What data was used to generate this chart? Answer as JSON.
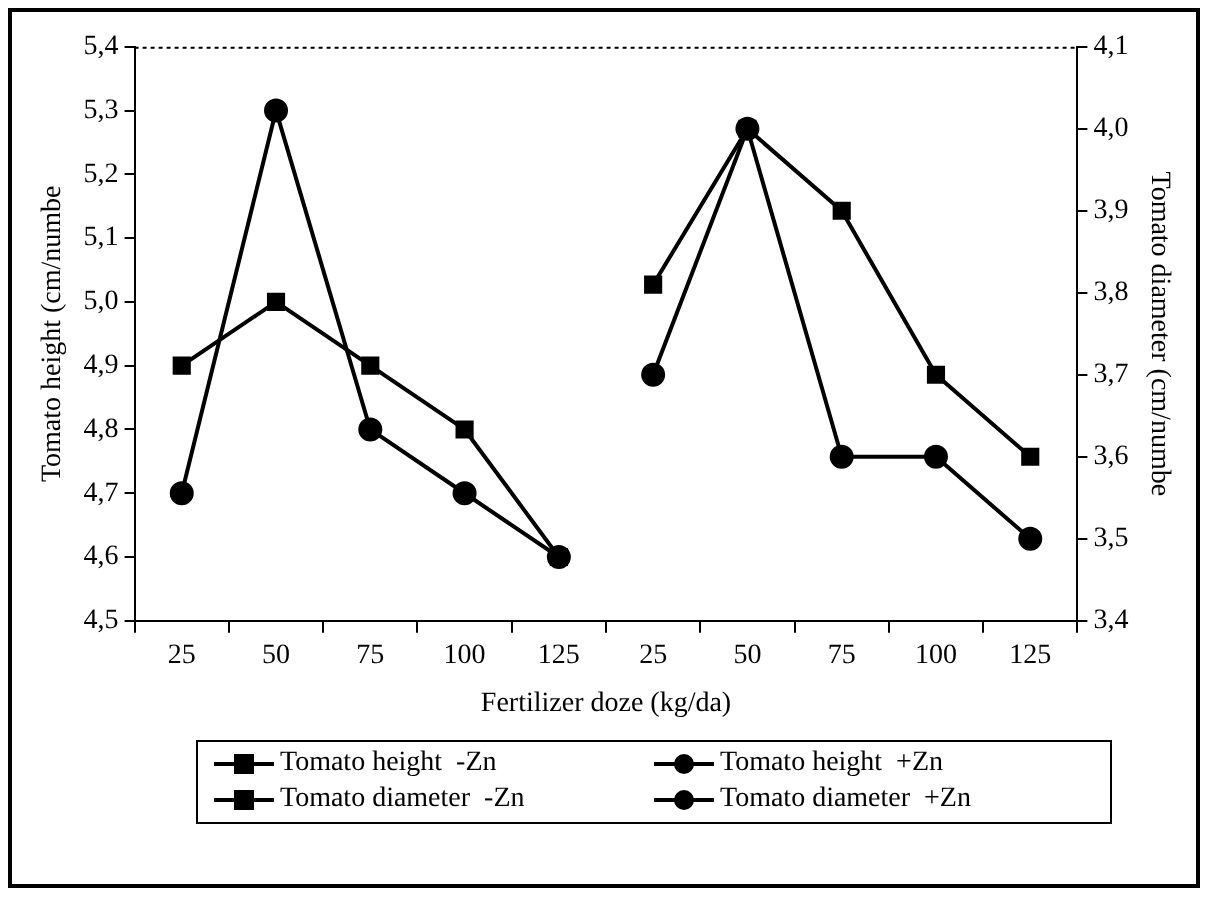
{
  "chart_data": {
    "type": "line",
    "xlabel": "Fertilizer doze (kg/da)",
    "ylabel": "Tomato height (cm/numbe",
    "y2label": "Tomato diameter (cm/numbe",
    "categories": [
      "25",
      "50",
      "75",
      "100",
      "125",
      "25",
      "50",
      "75",
      "100",
      "125"
    ],
    "series": [
      {
        "name": "Tomato height  -Zn",
        "color": "#000000",
        "marker": "square",
        "values": [
          4.9,
          5.0,
          4.9,
          4.8,
          4.6,
          null,
          null,
          null,
          null,
          null
        ]
      },
      {
        "name": "Tomato height  +Zn",
        "color": "#000000",
        "marker": "circle",
        "values": [
          4.7,
          5.3,
          4.8,
          4.7,
          4.6,
          null,
          null,
          null,
          null,
          null
        ]
      },
      {
        "name": "Tomato diameter  -Zn",
        "color": "#000000",
        "marker": "square",
        "axis": "y2",
        "values": [
          null,
          null,
          null,
          null,
          null,
          3.81,
          4.0,
          3.9,
          3.7,
          3.6
        ]
      },
      {
        "name": "Tomato diameter  +Zn",
        "color": "#000000",
        "marker": "circle",
        "axis": "y2",
        "values": [
          null,
          null,
          null,
          null,
          null,
          3.7,
          4.0,
          3.6,
          3.6,
          3.5
        ]
      }
    ],
    "ylim": [
      4.5,
      5.4
    ],
    "yticks": [
      {
        "value": 4.5,
        "label": "4,5"
      },
      {
        "value": 4.6,
        "label": "4,6"
      },
      {
        "value": 4.7,
        "label": "4,7"
      },
      {
        "value": 4.8,
        "label": "4,8"
      },
      {
        "value": 4.9,
        "label": "4,9"
      },
      {
        "value": 5.0,
        "label": "5,0"
      },
      {
        "value": 5.1,
        "label": "5,1"
      },
      {
        "value": 5.2,
        "label": "5,2"
      },
      {
        "value": 5.3,
        "label": "5,3"
      },
      {
        "value": 5.4,
        "label": "5,4"
      }
    ],
    "y2lim": [
      3.4,
      4.1
    ],
    "y2ticks": [
      {
        "value": 3.4,
        "label": "3,4"
      },
      {
        "value": 3.5,
        "label": "3,5"
      },
      {
        "value": 3.6,
        "label": "3,6"
      },
      {
        "value": 3.7,
        "label": "3,7"
      },
      {
        "value": 3.8,
        "label": "3,8"
      },
      {
        "value": 3.9,
        "label": "3,9"
      },
      {
        "value": 4.0,
        "label": "4,0"
      },
      {
        "value": 4.1,
        "label": "4,1"
      }
    ],
    "grid": false,
    "legend": "bottom",
    "line_style": "solid"
  }
}
